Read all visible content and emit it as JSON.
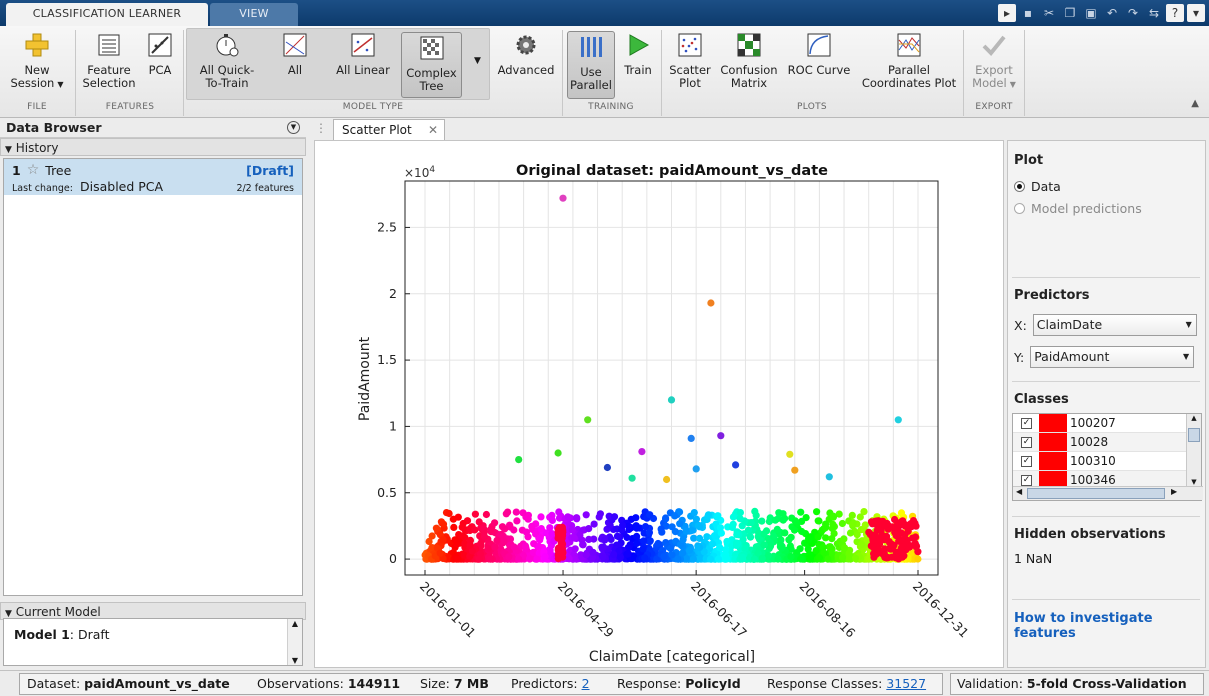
{
  "tabs": {
    "active": "CLASSIFICATION LEARNER",
    "inactive": "VIEW"
  },
  "ribbon": {
    "file": {
      "label": "FILE",
      "new_session": [
        "New",
        "Session"
      ]
    },
    "features": {
      "label": "FEATURES",
      "feature_selection": [
        "Feature",
        "Selection"
      ],
      "pca": "PCA"
    },
    "model_type": {
      "label": "MODEL TYPE",
      "all_quick": [
        "All Quick-",
        "To-Train"
      ],
      "all": "All",
      "all_linear": "All Linear",
      "complex_tree": [
        "Complex",
        "Tree"
      ],
      "advanced": "Advanced"
    },
    "training": {
      "label": "TRAINING",
      "use_parallel": [
        "Use",
        "Parallel"
      ],
      "train": "Train"
    },
    "plots": {
      "label": "PLOTS",
      "scatter": [
        "Scatter",
        "Plot"
      ],
      "confusion": [
        "Confusion",
        "Matrix"
      ],
      "roc": "ROC Curve",
      "parallel": [
        "Parallel",
        "Coordinates Plot"
      ]
    },
    "export": {
      "label": "EXPORT",
      "export_model": [
        "Export",
        "Model"
      ]
    }
  },
  "data_browser": {
    "title": "Data Browser",
    "history_label": "History",
    "item": {
      "number": "1",
      "name": "Tree",
      "status": "[Draft]",
      "last_change_label": "Last change:",
      "last_change": "Disabled PCA",
      "features": "2/2 features"
    },
    "current_model_label": "Current Model",
    "current_model": {
      "prefix": "Model 1",
      "value": ": Draft"
    }
  },
  "doc_tab": "Scatter Plot",
  "right_panel": {
    "plot_title": "Plot",
    "radio_data": "Data",
    "radio_predictions": "Model predictions",
    "predictors_title": "Predictors",
    "x_label": "X:",
    "x_value": "ClaimDate",
    "y_label": "Y:",
    "y_value": "PaidAmount",
    "classes_title": "Classes",
    "classes": [
      "100207",
      "10028",
      "100310",
      "100346"
    ],
    "hidden_title": "Hidden observations",
    "hidden_value": "1 NaN",
    "help_link": [
      "How to investigate",
      "features"
    ]
  },
  "status": {
    "dataset_label": "Dataset:",
    "dataset": "paidAmount_vs_date",
    "obs_label": "Observations:",
    "obs": "144911",
    "size_label": "Size:",
    "size": "7 MB",
    "pred_label": "Predictors:",
    "pred": "2",
    "resp_label": "Response:",
    "resp": "PolicyId",
    "rc_label": "Response Classes:",
    "rc": "31527",
    "val_label": "Validation:",
    "val": "5-fold Cross-Validation"
  },
  "chart_data": {
    "type": "scatter",
    "title": "Original dataset: paidAmount_vs_date",
    "xlabel": "ClaimDate [categorical]",
    "ylabel": "PaidAmount",
    "y_exponent": "×10",
    "y_exponent_power": "4",
    "xtick_labels": [
      "2016-01-01",
      "2016-04-29",
      "2016-06-17",
      "2016-08-16",
      "2016-12-31"
    ],
    "ytick_labels": [
      "0",
      "0.5",
      "1",
      "1.5",
      "2",
      "2.5"
    ],
    "ylim": [
      -1200,
      28500
    ],
    "grid": true,
    "outliers": [
      {
        "x": 0.28,
        "y": 27200,
        "color": "#e040c0"
      },
      {
        "x": 0.58,
        "y": 19300,
        "color": "#f08020"
      },
      {
        "x": 0.5,
        "y": 12000,
        "color": "#20d0c0"
      },
      {
        "x": 0.96,
        "y": 10500,
        "color": "#20d0e0"
      },
      {
        "x": 0.33,
        "y": 10500,
        "color": "#60e020"
      },
      {
        "x": 0.6,
        "y": 9300,
        "color": "#8020e0"
      },
      {
        "x": 0.54,
        "y": 9100,
        "color": "#2080f0"
      },
      {
        "x": 0.44,
        "y": 8100,
        "color": "#c020e0"
      },
      {
        "x": 0.27,
        "y": 8000,
        "color": "#40e020"
      },
      {
        "x": 0.74,
        "y": 7900,
        "color": "#e0e020"
      },
      {
        "x": 0.19,
        "y": 7500,
        "color": "#20e040"
      },
      {
        "x": 0.63,
        "y": 7100,
        "color": "#2040e0"
      },
      {
        "x": 0.37,
        "y": 6900,
        "color": "#2040c0"
      },
      {
        "x": 0.55,
        "y": 6800,
        "color": "#20a0f0"
      },
      {
        "x": 0.75,
        "y": 6700,
        "color": "#f0a020"
      },
      {
        "x": 0.82,
        "y": 6200,
        "color": "#20c0e0"
      },
      {
        "x": 0.42,
        "y": 6100,
        "color": "#20e0a0"
      },
      {
        "x": 0.49,
        "y": 6000,
        "color": "#f0c020"
      }
    ]
  }
}
